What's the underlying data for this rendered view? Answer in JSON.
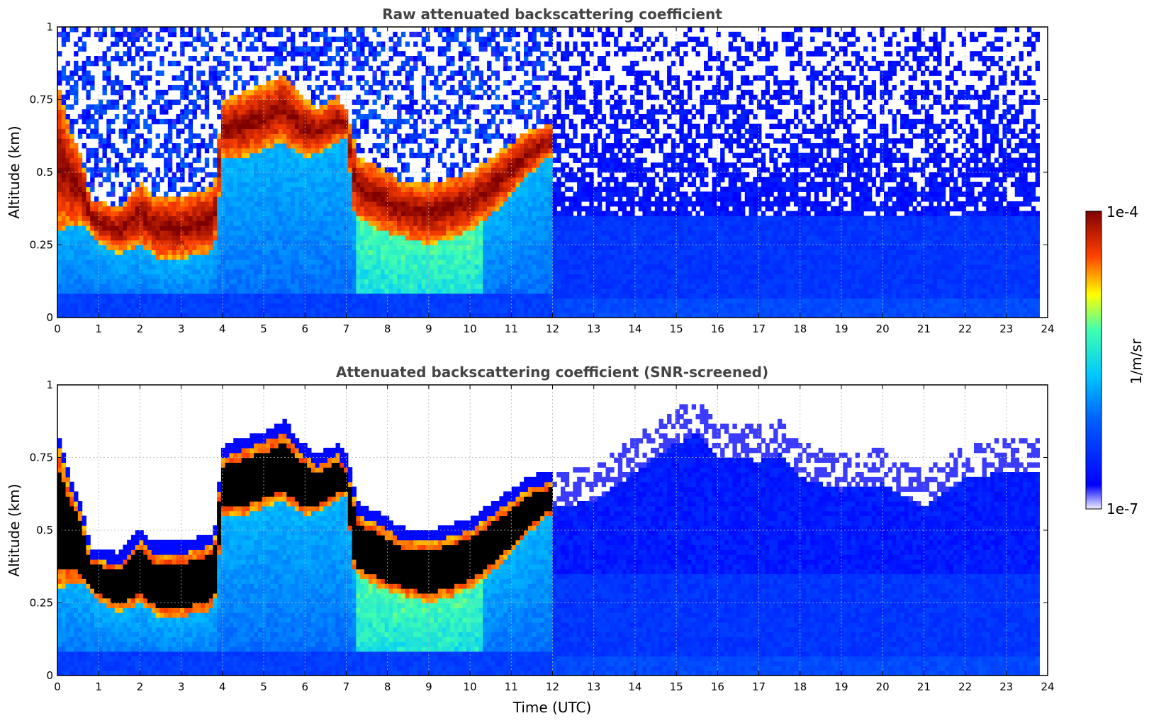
{
  "chart_data": [
    {
      "type": "heatmap",
      "title": "Raw attenuated backscattering coefficient",
      "xlabel": "",
      "ylabel": "Altitude (km)",
      "xlim": [
        0,
        24
      ],
      "ylim": [
        0,
        1
      ],
      "xticks": [
        "0",
        "1",
        "2",
        "3",
        "4",
        "5",
        "6",
        "7",
        "8",
        "9",
        "10",
        "11",
        "12",
        "13",
        "14",
        "15",
        "16",
        "17",
        "18",
        "19",
        "20",
        "21",
        "22",
        "23",
        "24"
      ],
      "yticks": [
        "0",
        "0.25",
        "0.5",
        "0.75",
        "1"
      ],
      "ytick_values": [
        0,
        0.25,
        0.5,
        0.75,
        1
      ],
      "grid": true,
      "screened": false,
      "layer_top_km": [
        [
          0,
          0.8
        ],
        [
          0.3,
          0.65
        ],
        [
          0.6,
          0.55
        ],
        [
          0.8,
          0.4
        ],
        [
          1.0,
          0.4
        ],
        [
          1.5,
          0.38
        ],
        [
          2.0,
          0.47
        ],
        [
          2.3,
          0.42
        ],
        [
          3.0,
          0.42
        ],
        [
          3.8,
          0.45
        ],
        [
          4.0,
          0.75
        ],
        [
          4.5,
          0.78
        ],
        [
          5.0,
          0.8
        ],
        [
          5.5,
          0.84
        ],
        [
          5.8,
          0.78
        ],
        [
          6.3,
          0.72
        ],
        [
          6.8,
          0.76
        ],
        [
          7.0,
          0.72
        ],
        [
          7.3,
          0.55
        ],
        [
          7.8,
          0.52
        ],
        [
          8.3,
          0.47
        ],
        [
          9.0,
          0.46
        ],
        [
          9.5,
          0.48
        ],
        [
          10.0,
          0.5
        ],
        [
          10.5,
          0.55
        ],
        [
          11.0,
          0.6
        ],
        [
          11.5,
          0.65
        ],
        [
          11.9,
          0.66
        ]
      ],
      "layer_bottom_km": [
        [
          0,
          0.3
        ],
        [
          0.5,
          0.32
        ],
        [
          0.8,
          0.3
        ],
        [
          1.0,
          0.26
        ],
        [
          1.5,
          0.22
        ],
        [
          2.0,
          0.25
        ],
        [
          2.5,
          0.2
        ],
        [
          3.0,
          0.2
        ],
        [
          3.8,
          0.23
        ],
        [
          4.0,
          0.55
        ],
        [
          4.5,
          0.55
        ],
        [
          5.0,
          0.58
        ],
        [
          5.5,
          0.6
        ],
        [
          6.0,
          0.55
        ],
        [
          6.5,
          0.58
        ],
        [
          7.0,
          0.62
        ],
        [
          7.2,
          0.35
        ],
        [
          7.8,
          0.3
        ],
        [
          8.3,
          0.28
        ],
        [
          9.0,
          0.25
        ],
        [
          9.5,
          0.27
        ],
        [
          10.0,
          0.3
        ],
        [
          10.5,
          0.35
        ],
        [
          11.0,
          0.42
        ],
        [
          11.5,
          0.5
        ],
        [
          11.9,
          0.55
        ]
      ]
    },
    {
      "type": "heatmap",
      "title": "Attenuated backscattering coefficient (SNR-screened)",
      "xlabel": "Time (UTC)",
      "ylabel": "Altitude (km)",
      "xlim": [
        0,
        24
      ],
      "ylim": [
        0,
        1
      ],
      "xticks": [
        "0",
        "1",
        "2",
        "3",
        "4",
        "5",
        "6",
        "7",
        "8",
        "9",
        "10",
        "11",
        "12",
        "13",
        "14",
        "15",
        "16",
        "17",
        "18",
        "19",
        "20",
        "21",
        "22",
        "23",
        "24"
      ],
      "yticks": [
        "0",
        "0.25",
        "0.5",
        "0.75",
        "1"
      ],
      "ytick_values": [
        0,
        0.25,
        0.5,
        0.75,
        1
      ],
      "grid": true,
      "screened": true,
      "noise_top_km": [
        [
          12,
          0.7
        ],
        [
          13,
          0.72
        ],
        [
          14,
          0.82
        ],
        [
          15,
          0.92
        ],
        [
          15.5,
          0.95
        ],
        [
          16,
          0.87
        ],
        [
          17,
          0.86
        ],
        [
          17.5,
          0.88
        ],
        [
          18,
          0.8
        ],
        [
          19,
          0.76
        ],
        [
          20,
          0.78
        ],
        [
          21,
          0.7
        ],
        [
          22,
          0.8
        ],
        [
          23,
          0.82
        ],
        [
          23.8,
          0.82
        ]
      ]
    }
  ],
  "colorbar": {
    "label": "1/m/sr",
    "max_label": "1e-4",
    "min_label": "1e-7",
    "scale": "log",
    "colormap": "jet",
    "colors": [
      "#f0f0ff",
      "#0000ff",
      "#00c8ff",
      "#ffff00",
      "#ff4000",
      "#800000"
    ]
  }
}
